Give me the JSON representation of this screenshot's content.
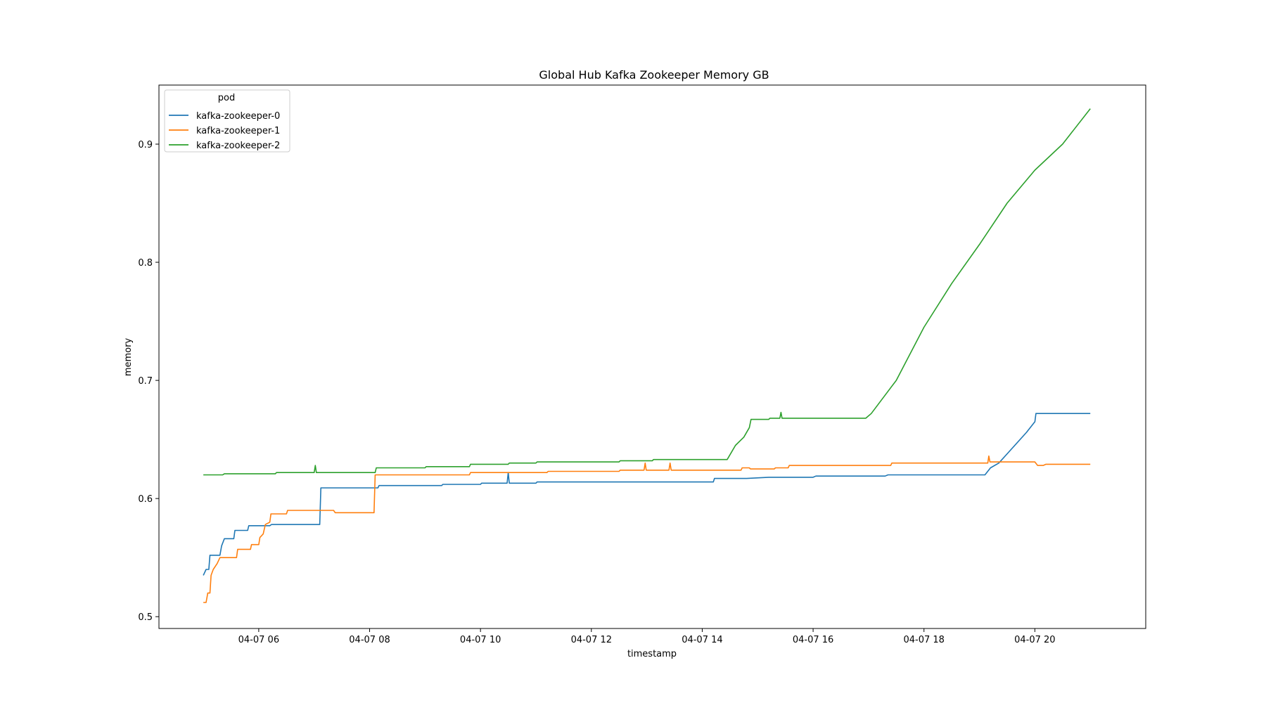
{
  "chart_data": {
    "type": "line",
    "title": "Global Hub Kafka Zookeeper Memory GB",
    "xlabel": "timestamp",
    "ylabel": "memory",
    "x_unit": "hour of 04-07",
    "xlim": [
      4.2,
      22.0
    ],
    "ylim": [
      0.49,
      0.95
    ],
    "x_ticks": [
      {
        "value": 6,
        "label": "04-07 06"
      },
      {
        "value": 8,
        "label": "04-07 08"
      },
      {
        "value": 10,
        "label": "04-07 10"
      },
      {
        "value": 12,
        "label": "04-07 12"
      },
      {
        "value": 14,
        "label": "04-07 14"
      },
      {
        "value": 16,
        "label": "04-07 16"
      },
      {
        "value": 18,
        "label": "04-07 18"
      },
      {
        "value": 20,
        "label": "04-07 20"
      }
    ],
    "y_ticks": [
      {
        "value": 0.5,
        "label": "0.5"
      },
      {
        "value": 0.6,
        "label": "0.6"
      },
      {
        "value": 0.7,
        "label": "0.7"
      },
      {
        "value": 0.8,
        "label": "0.8"
      },
      {
        "value": 0.9,
        "label": "0.9"
      }
    ],
    "grid": false,
    "legend": {
      "title": "pod",
      "placement": "upper-left"
    },
    "series": [
      {
        "name": "kafka-zookeeper-0",
        "color": "#1f77b4",
        "points": [
          [
            5.0,
            0.535
          ],
          [
            5.05,
            0.54
          ],
          [
            5.1,
            0.54
          ],
          [
            5.12,
            0.552
          ],
          [
            5.3,
            0.552
          ],
          [
            5.33,
            0.56
          ],
          [
            5.38,
            0.566
          ],
          [
            5.55,
            0.566
          ],
          [
            5.57,
            0.573
          ],
          [
            5.8,
            0.573
          ],
          [
            5.82,
            0.577
          ],
          [
            6.2,
            0.577
          ],
          [
            6.23,
            0.578
          ],
          [
            7.1,
            0.578
          ],
          [
            7.12,
            0.609
          ],
          [
            8.15,
            0.609
          ],
          [
            8.17,
            0.611
          ],
          [
            9.3,
            0.611
          ],
          [
            9.32,
            0.612
          ],
          [
            10.0,
            0.612
          ],
          [
            10.02,
            0.613
          ],
          [
            10.48,
            0.613
          ],
          [
            10.5,
            0.622
          ],
          [
            10.52,
            0.613
          ],
          [
            11.0,
            0.613
          ],
          [
            11.02,
            0.614
          ],
          [
            14.2,
            0.614
          ],
          [
            14.22,
            0.617
          ],
          [
            14.8,
            0.617
          ],
          [
            15.2,
            0.618
          ],
          [
            16.0,
            0.618
          ],
          [
            16.05,
            0.619
          ],
          [
            17.3,
            0.619
          ],
          [
            17.35,
            0.62
          ],
          [
            19.1,
            0.62
          ],
          [
            19.2,
            0.626
          ],
          [
            19.35,
            0.63
          ],
          [
            19.6,
            0.643
          ],
          [
            19.85,
            0.656
          ],
          [
            20.0,
            0.665
          ],
          [
            20.02,
            0.672
          ],
          [
            21.0,
            0.672
          ]
        ]
      },
      {
        "name": "kafka-zookeeper-1",
        "color": "#ff7f0e",
        "points": [
          [
            5.0,
            0.512
          ],
          [
            5.05,
            0.512
          ],
          [
            5.08,
            0.52
          ],
          [
            5.12,
            0.52
          ],
          [
            5.14,
            0.535
          ],
          [
            5.18,
            0.54
          ],
          [
            5.25,
            0.545
          ],
          [
            5.3,
            0.55
          ],
          [
            5.6,
            0.55
          ],
          [
            5.62,
            0.557
          ],
          [
            5.85,
            0.557
          ],
          [
            5.87,
            0.561
          ],
          [
            6.0,
            0.561
          ],
          [
            6.02,
            0.567
          ],
          [
            6.08,
            0.57
          ],
          [
            6.12,
            0.578
          ],
          [
            6.2,
            0.58
          ],
          [
            6.22,
            0.587
          ],
          [
            6.5,
            0.587
          ],
          [
            6.52,
            0.59
          ],
          [
            7.35,
            0.59
          ],
          [
            7.38,
            0.588
          ],
          [
            8.08,
            0.588
          ],
          [
            8.1,
            0.62
          ],
          [
            9.8,
            0.62
          ],
          [
            9.82,
            0.622
          ],
          [
            11.2,
            0.622
          ],
          [
            11.22,
            0.623
          ],
          [
            12.5,
            0.623
          ],
          [
            12.52,
            0.624
          ],
          [
            12.95,
            0.624
          ],
          [
            12.97,
            0.63
          ],
          [
            12.99,
            0.624
          ],
          [
            13.4,
            0.624
          ],
          [
            13.42,
            0.63
          ],
          [
            13.44,
            0.624
          ],
          [
            14.7,
            0.624
          ],
          [
            14.72,
            0.626
          ],
          [
            14.85,
            0.626
          ],
          [
            14.87,
            0.625
          ],
          [
            15.3,
            0.625
          ],
          [
            15.32,
            0.626
          ],
          [
            15.55,
            0.626
          ],
          [
            15.57,
            0.628
          ],
          [
            17.4,
            0.628
          ],
          [
            17.42,
            0.63
          ],
          [
            19.15,
            0.63
          ],
          [
            19.17,
            0.636
          ],
          [
            19.19,
            0.631
          ],
          [
            20.0,
            0.631
          ],
          [
            20.05,
            0.628
          ],
          [
            20.15,
            0.628
          ],
          [
            20.2,
            0.629
          ],
          [
            21.0,
            0.629
          ]
        ]
      },
      {
        "name": "kafka-zookeeper-2",
        "color": "#2ca02c",
        "points": [
          [
            5.0,
            0.62
          ],
          [
            5.35,
            0.62
          ],
          [
            5.38,
            0.621
          ],
          [
            6.3,
            0.621
          ],
          [
            6.32,
            0.622
          ],
          [
            7.0,
            0.622
          ],
          [
            7.02,
            0.628
          ],
          [
            7.04,
            0.622
          ],
          [
            8.1,
            0.622
          ],
          [
            8.12,
            0.626
          ],
          [
            9.0,
            0.626
          ],
          [
            9.02,
            0.627
          ],
          [
            9.8,
            0.627
          ],
          [
            9.82,
            0.629
          ],
          [
            10.5,
            0.629
          ],
          [
            10.52,
            0.63
          ],
          [
            11.0,
            0.63
          ],
          [
            11.02,
            0.631
          ],
          [
            12.5,
            0.631
          ],
          [
            12.52,
            0.632
          ],
          [
            13.1,
            0.632
          ],
          [
            13.12,
            0.633
          ],
          [
            14.45,
            0.633
          ],
          [
            14.6,
            0.645
          ],
          [
            14.75,
            0.652
          ],
          [
            14.85,
            0.66
          ],
          [
            14.88,
            0.667
          ],
          [
            15.2,
            0.667
          ],
          [
            15.22,
            0.668
          ],
          [
            15.4,
            0.668
          ],
          [
            15.42,
            0.673
          ],
          [
            15.44,
            0.668
          ],
          [
            16.95,
            0.668
          ],
          [
            17.05,
            0.672
          ],
          [
            17.5,
            0.7
          ],
          [
            18.0,
            0.745
          ],
          [
            18.5,
            0.782
          ],
          [
            19.0,
            0.815
          ],
          [
            19.5,
            0.85
          ],
          [
            20.0,
            0.878
          ],
          [
            20.5,
            0.9
          ],
          [
            21.0,
            0.93
          ]
        ]
      }
    ]
  }
}
